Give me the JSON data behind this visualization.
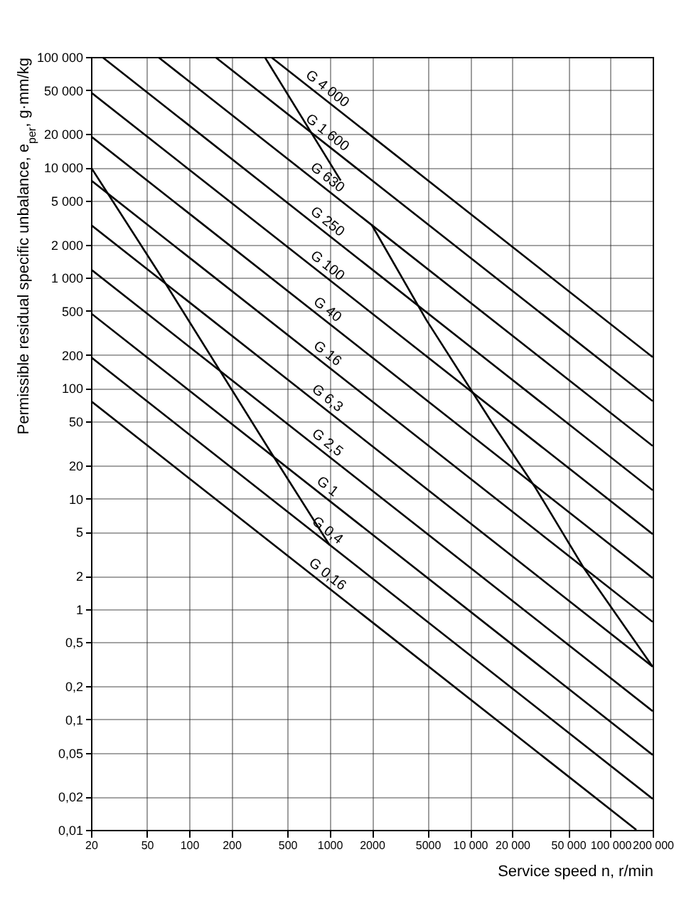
{
  "chart_data": {
    "type": "line",
    "xlabel": "Service speed n, r/min",
    "ylabel": "Permissible residual specific unbalance, e$_{per}$, g·mm/kg",
    "log": "xy",
    "grid": true,
    "xlim": [
      20,
      200000
    ],
    "ylim": [
      0.01,
      100000
    ],
    "xticks": [
      20,
      50,
      100,
      200,
      500,
      1000,
      2000,
      5000,
      {
        "value": 10000,
        "label": "10 000"
      },
      {
        "value": 20000,
        "label": "20 000"
      },
      {
        "value": 50000,
        "label": "50 000"
      },
      {
        "value": 100000,
        "label": "100 000"
      },
      {
        "value": 200000,
        "label": "200 000"
      }
    ],
    "yticks": [
      {
        "value": 0.01,
        "label": "0,01"
      },
      {
        "value": 0.02,
        "label": "0,02"
      },
      {
        "value": 0.05,
        "label": "0,05"
      },
      {
        "value": 0.1,
        "label": "0,1"
      },
      {
        "value": 0.2,
        "label": "0,2"
      },
      {
        "value": 0.5,
        "label": "0,5"
      },
      1,
      2,
      5,
      10,
      20,
      50,
      100,
      200,
      500,
      {
        "value": 1000,
        "label": "1 000"
      },
      {
        "value": 2000,
        "label": "2 000"
      },
      {
        "value": 5000,
        "label": "5 000"
      },
      {
        "value": 10000,
        "label": "10 000"
      },
      {
        "value": 20000,
        "label": "20 000"
      },
      {
        "value": 50000,
        "label": "50 000"
      },
      {
        "value": 100000,
        "label": "100 000"
      }
    ],
    "series": [
      {
        "name": "G 4 000",
        "color": "#000000",
        "x": [
          382,
          200000
        ],
        "values": [
          100000,
          191
        ]
      },
      {
        "name": "G 1 600",
        "color": "#000000",
        "x": [
          153,
          200000
        ],
        "values": [
          100000,
          76.4
        ]
      },
      {
        "name": "G 630",
        "color": "#000000",
        "x": [
          60,
          200000
        ],
        "values": [
          100000,
          30
        ]
      },
      {
        "name": "G 250",
        "color": "#000000",
        "x": [
          24,
          200000
        ],
        "values": [
          100000,
          11.9
        ]
      },
      {
        "name": "G 100",
        "color": "#000000",
        "x": [
          20,
          200000
        ],
        "values": [
          47700,
          4.77
        ]
      },
      {
        "name": "G 40",
        "color": "#000000",
        "x": [
          20,
          200000
        ],
        "values": [
          19100,
          1.91
        ]
      },
      {
        "name": "G 16",
        "color": "#000000",
        "x": [
          20,
          200000
        ],
        "values": [
          7640,
          0.764
        ]
      },
      {
        "name": "G 6,3",
        "color": "#000000",
        "x": [
          20,
          200000
        ],
        "values": [
          3010,
          0.301
        ]
      },
      {
        "name": "G 2,5",
        "color": "#000000",
        "x": [
          20,
          200000
        ],
        "values": [
          1190,
          0.119
        ]
      },
      {
        "name": "G 1",
        "color": "#000000",
        "x": [
          20,
          200000
        ],
        "values": [
          477,
          0.0477
        ]
      },
      {
        "name": "G 0,4",
        "color": "#000000",
        "x": [
          20,
          200000
        ],
        "values": [
          191,
          0.0191
        ]
      },
      {
        "name": "G 0,16",
        "color": "#000000",
        "x": [
          20,
          153000
        ],
        "values": [
          76.4,
          0.01
        ]
      },
      {
        "color": "#000000",
        "x": [
          20,
          64,
          384,
          1000
        ],
        "values": [
          10000,
          1000,
          26,
          3.8
        ]
      },
      {
        "color": "#000000",
        "x": [
          345,
          1200
        ],
        "values": [
          100000,
          7600
        ]
      },
      {
        "color": "#000000",
        "x": [
          2000,
          4900,
          14300,
          29400,
          65400,
          200000
        ],
        "values": [
          3000,
          413,
          49,
          12.4,
          2.3,
          0.3
        ]
      }
    ]
  }
}
